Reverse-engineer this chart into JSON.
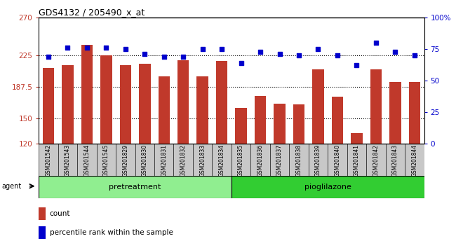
{
  "title": "GDS4132 / 205490_x_at",
  "samples": [
    "GSM201542",
    "GSM201543",
    "GSM201544",
    "GSM201545",
    "GSM201829",
    "GSM201830",
    "GSM201831",
    "GSM201832",
    "GSM201833",
    "GSM201834",
    "GSM201835",
    "GSM201836",
    "GSM201837",
    "GSM201838",
    "GSM201839",
    "GSM201840",
    "GSM201841",
    "GSM201842",
    "GSM201843",
    "GSM201844"
  ],
  "counts": [
    210,
    213,
    237,
    225,
    213,
    215,
    200,
    219,
    200,
    218,
    163,
    177,
    168,
    167,
    208,
    176,
    133,
    208,
    193,
    193
  ],
  "percentiles": [
    69,
    76,
    76,
    76,
    75,
    71,
    69,
    69,
    75,
    75,
    64,
    73,
    71,
    70,
    75,
    70,
    62,
    80,
    73,
    70
  ],
  "group1_label": "pretreatment",
  "group2_label": "pioglilazone",
  "group1_count": 10,
  "group2_count": 10,
  "bar_color": "#c0392b",
  "dot_color": "#0000cc",
  "ylim_left": [
    120,
    270
  ],
  "ylim_right": [
    0,
    100
  ],
  "yticks_left": [
    120,
    150,
    187.5,
    225,
    270
  ],
  "ytick_labels_left": [
    "120",
    "150",
    "187.5",
    "225",
    "270"
  ],
  "yticks_right": [
    0,
    25,
    50,
    75,
    100
  ],
  "ytick_labels_right": [
    "0",
    "25",
    "50",
    "75",
    "100%"
  ],
  "hlines": [
    150,
    187.5,
    225
  ],
  "group1_color": "#90ee90",
  "group2_color": "#32cd32",
  "agent_label": "agent",
  "legend_count_label": "count",
  "legend_percentile_label": "percentile rank within the sample"
}
